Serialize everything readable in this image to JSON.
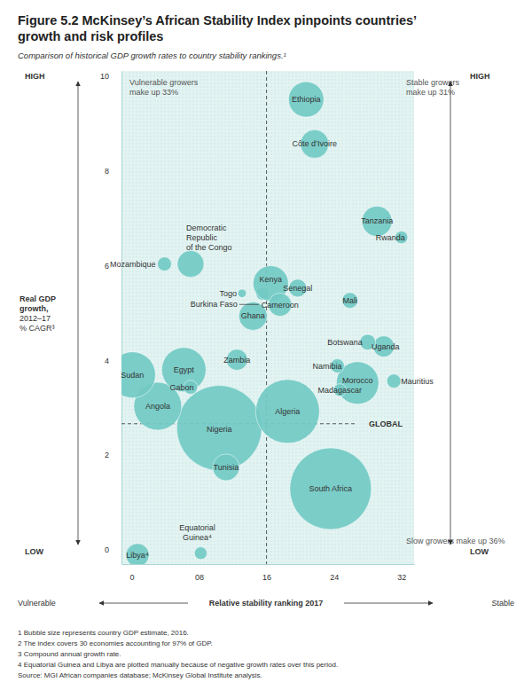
{
  "chart_data": {
    "type": "scatter",
    "title": [
      "Figure 5.2 McKinsey’s African Stability Index pinpoints countries’",
      "growth and risk profiles"
    ],
    "subtitle": "Comparison of historical GDP growth rates to country stability rankings.¹",
    "x_label": "Relative stability ranking 2017",
    "x_low_label": "Vulnerable",
    "x_high_label": "Stable",
    "y_label": [
      "Real GDP",
      "growth,",
      "2012–17",
      "% CAGR³"
    ],
    "y_high_label": "HIGH",
    "y_low_label": "LOW",
    "quadrant_labels": [
      [
        "Vulnerable growers",
        "make up 33%"
      ],
      [
        "Stable growers",
        "make up 31%"
      ],
      [
        "Slow growers make up 36%"
      ]
    ],
    "divider": 16,
    "global": {
      "label": "GLOBAL",
      "value": 2.66
    },
    "color": "#72cac4",
    "xlim": [
      -1.2,
      33.5
    ],
    "ylim": [
      -0.3,
      10.1
    ],
    "xticks": [
      0,
      {
        "value": 8,
        "label": "08"
      },
      16,
      24,
      32
    ],
    "yticks": [
      0,
      2,
      4,
      6,
      8,
      10
    ],
    "labels": [
      [
        "Burkina Faso"
      ],
      [
        "Nigeria"
      ],
      [
        "South Africa"
      ],
      [
        "Algeria"
      ],
      [
        "Angola"
      ],
      [
        "Sudan"
      ],
      [
        "Egypt"
      ],
      [
        "Morocco"
      ],
      [
        "Ethiopia"
      ],
      [
        "Kenya"
      ],
      [
        "Tanzania"
      ],
      [
        "Côte d’Ivoire"
      ],
      [
        "Ghana"
      ],
      [
        "Democratic",
        "Republic",
        "of the Congo"
      ],
      [
        "Tunisia"
      ],
      [
        "Cameroon"
      ],
      [
        "Libya⁴"
      ],
      [
        "Uganda"
      ],
      [
        "Zambia"
      ],
      [
        "Senegal"
      ],
      [
        "Botswana"
      ],
      [
        "Mali"
      ],
      [
        "Gabon"
      ],
      [
        "Namibia"
      ],
      [
        "Mauritius"
      ],
      [
        "Mozambique"
      ],
      [
        "Madagascar"
      ],
      [
        "Rwanda"
      ],
      [
        "Equatorial",
        "Guinea⁴"
      ],
      [
        "Togo"
      ]
    ],
    "x": [
      15.5,
      10.4,
      23.6,
      18.5,
      3.1,
      0.1,
      6.2,
      26.8,
      20.7,
      16.5,
      29.1,
      21.7,
      14.4,
      7.0,
      11.2,
      17.6,
      0.7,
      29.9,
      12.5,
      19.7,
      28.0,
      25.9,
      7.0,
      24.4,
      31.1,
      3.9,
      24.7,
      32.0,
      8.2,
      13.1
    ],
    "y": [
      5.4,
      2.57,
      1.29,
      2.92,
      3.03,
      3.69,
      3.8,
      3.52,
      9.5,
      5.62,
      6.93,
      8.56,
      4.93,
      6.03,
      1.74,
      5.17,
      -0.11,
      4.29,
      4.01,
      5.52,
      4.38,
      5.26,
      3.43,
      3.88,
      3.56,
      6.03,
      3.37,
      6.59,
      -0.07,
      5.41
    ],
    "size": [
      9,
      405,
      372,
      228,
      128,
      119,
      110,
      101,
      70,
      70,
      51,
      45,
      45,
      40,
      40,
      30,
      30,
      25,
      25,
      18,
      14,
      14,
      11,
      11,
      11,
      11,
      9,
      9,
      9,
      4
    ],
    "footnotes": [
      "1 Bubble size represents country GDP estimate, 2016.",
      "2 The index covers 30 economies accounting for 97% of GDP.",
      "3 Compound annual growth rate.",
      "4 Equatorial Guinea and Libya are plotted manually because of negative growth rates over this period."
    ],
    "source": "Source: MGI African companies database; McKinsey Global Institute analysis."
  }
}
